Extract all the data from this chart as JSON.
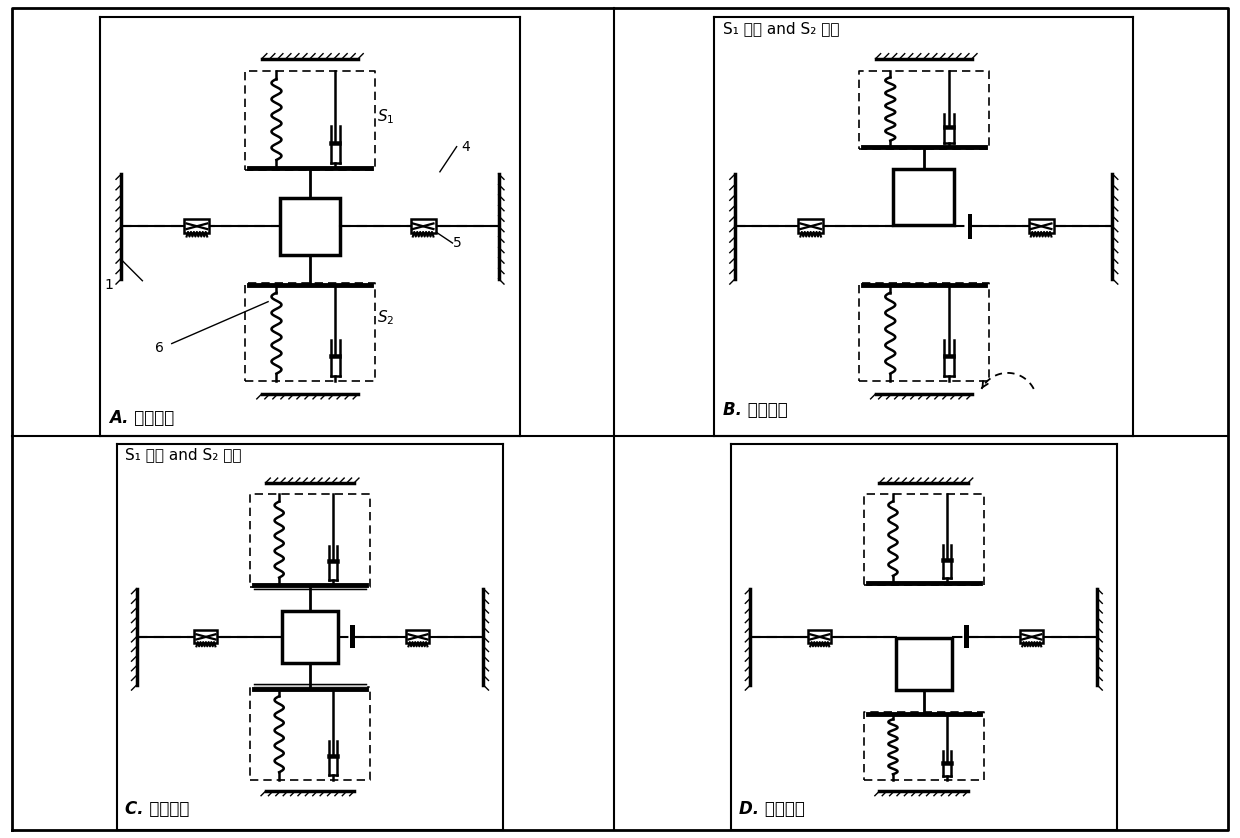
{
  "panel_titles": {
    "A": "A. 初始状态",
    "B": "B. 正极値点",
    "C": "C. 零点位置",
    "D": "D. 负极値点"
  },
  "subtitle_B": "S₁ 闭合 and S₂ 断开",
  "subtitle_C": "S₁ 断开 and S₂ 闭合",
  "bg_color": "#ffffff"
}
